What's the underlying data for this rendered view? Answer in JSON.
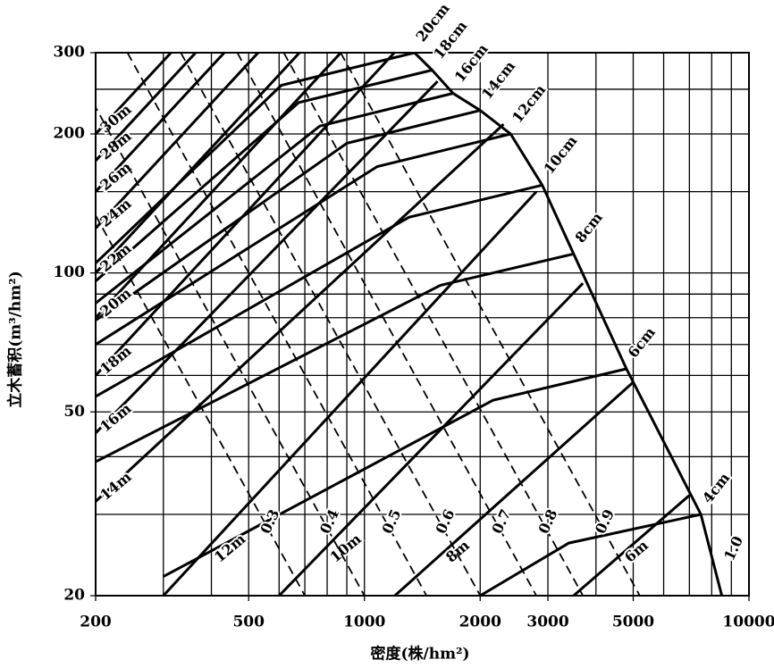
{
  "chart_data": {
    "type": "line",
    "xlabel": "密度(株/hm²)",
    "ylabel": "立木蓄积(m³/hm²)",
    "xscale": "log",
    "yscale": "log",
    "grid": true,
    "xlim": [
      200,
      10000
    ],
    "ylim": [
      20,
      300
    ],
    "xticks": [
      200,
      500,
      1000,
      2000,
      3000,
      5000,
      10000
    ],
    "yticks": [
      20,
      50,
      100,
      200,
      300
    ],
    "xminor": [
      300,
      400,
      600,
      700,
      800,
      900,
      4000,
      6000,
      7000,
      8000,
      9000
    ],
    "yminor": [
      30,
      40,
      60,
      70,
      80,
      90,
      150,
      250
    ],
    "series": [
      {
        "name": "20cm",
        "group": "diameter",
        "color": "#000",
        "x": [
          200,
          608,
          1350
        ],
        "y": [
          105,
          255,
          300
        ]
      },
      {
        "name": "18cm",
        "group": "diameter",
        "color": "#000",
        "x": [
          200,
          675,
          1500
        ],
        "y": [
          96,
          234,
          275
        ]
      },
      {
        "name": "16cm",
        "group": "diameter",
        "color": "#000",
        "x": [
          200,
          765,
          1700
        ],
        "y": [
          86,
          208,
          245
        ]
      },
      {
        "name": "14cm",
        "group": "diameter",
        "color": "#000",
        "x": [
          200,
          900,
          2000
        ],
        "y": [
          79,
          191,
          225
        ]
      },
      {
        "name": "12cm",
        "group": "diameter",
        "color": "#000",
        "x": [
          200,
          1080,
          2400
        ],
        "y": [
          70,
          170,
          200
        ]
      },
      {
        "name": "10cm",
        "group": "diameter",
        "color": "#000",
        "x": [
          200,
          1305,
          2900
        ],
        "y": [
          54,
          132,
          155
        ]
      },
      {
        "name": "8cm",
        "group": "diameter",
        "color": "#000",
        "x": [
          200,
          1575,
          3500
        ],
        "y": [
          39,
          94,
          110
        ]
      },
      {
        "name": "6cm",
        "group": "diameter",
        "color": "#000",
        "x": [
          300,
          2160,
          4800
        ],
        "y": [
          22,
          53,
          62
        ]
      },
      {
        "name": "4cm",
        "group": "diameter",
        "color": "#000",
        "x": [
          2000,
          3400,
          7500
        ],
        "y": [
          20,
          26,
          30
        ]
      },
      {
        "name": "30m",
        "group": "height",
        "color": "#000",
        "x": [
          200,
          314
        ],
        "y": [
          200,
          300
        ]
      },
      {
        "name": "28m",
        "group": "height",
        "color": "#000",
        "x": [
          200,
          364
        ],
        "y": [
          175,
          300
        ]
      },
      {
        "name": "26m",
        "group": "height",
        "color": "#000",
        "x": [
          200,
          432
        ],
        "y": [
          150,
          300
        ]
      },
      {
        "name": "24m",
        "group": "height",
        "color": "#000",
        "x": [
          200,
          529
        ],
        "y": [
          125,
          300
        ]
      },
      {
        "name": "22m",
        "group": "height",
        "color": "#000",
        "x": [
          200,
          678
        ],
        "y": [
          100,
          300
        ]
      },
      {
        "name": "20m",
        "group": "height",
        "color": "#000",
        "x": [
          200,
          868
        ],
        "y": [
          80,
          300
        ]
      },
      {
        "name": "18m",
        "group": "height",
        "color": "#000",
        "x": [
          200,
          1196
        ],
        "y": [
          60,
          300
        ]
      },
      {
        "name": "16m",
        "group": "height",
        "color": "#000",
        "x": [
          200,
          1550
        ],
        "y": [
          45,
          260
        ]
      },
      {
        "name": "14m",
        "group": "height",
        "color": "#000",
        "x": [
          200,
          2300
        ],
        "y": [
          32,
          210
        ]
      },
      {
        "name": "12m",
        "group": "height",
        "color": "#000",
        "x": [
          300,
          2800
        ],
        "y": [
          20,
          150
        ]
      },
      {
        "name": "10m",
        "group": "height",
        "color": "#000",
        "x": [
          600,
          3700
        ],
        "y": [
          20,
          95
        ]
      },
      {
        "name": "8m",
        "group": "height",
        "color": "#000",
        "x": [
          1200,
          5000
        ],
        "y": [
          20,
          58
        ]
      },
      {
        "name": "6m",
        "group": "height",
        "color": "#000",
        "x": [
          3500,
          7000
        ],
        "y": [
          20,
          33
        ]
      },
      {
        "name": "0.3",
        "group": "density",
        "color": "#000",
        "dashed": true,
        "x": [
          117,
          700
        ],
        "y": [
          300,
          20
        ]
      },
      {
        "name": "0.4",
        "group": "density",
        "color": "#000",
        "dashed": true,
        "x": [
          167,
          1000
        ],
        "y": [
          300,
          20
        ]
      },
      {
        "name": "0.5",
        "group": "density",
        "color": "#000",
        "dashed": true,
        "x": [
          242,
          1450
        ],
        "y": [
          300,
          20
        ]
      },
      {
        "name": "0.6",
        "group": "density",
        "color": "#000",
        "dashed": true,
        "x": [
          333,
          2000
        ],
        "y": [
          300,
          20
        ]
      },
      {
        "name": "0.7",
        "group": "density",
        "color": "#000",
        "dashed": true,
        "x": [
          467,
          2800
        ],
        "y": [
          300,
          20
        ]
      },
      {
        "name": "0.8",
        "group": "density",
        "color": "#000",
        "dashed": true,
        "x": [
          617,
          3700
        ],
        "y": [
          300,
          20
        ]
      },
      {
        "name": "0.9",
        "group": "density",
        "color": "#000",
        "dashed": true,
        "x": [
          867,
          5200
        ],
        "y": [
          300,
          20
        ]
      },
      {
        "name": "1.0",
        "group": "density",
        "color": "#000",
        "x": [
          1350,
          1500,
          1700,
          2000,
          2400,
          2900,
          3500,
          4800,
          7500,
          8500
        ],
        "y": [
          300,
          275,
          245,
          225,
          200,
          155,
          110,
          62,
          30,
          20
        ]
      }
    ]
  }
}
